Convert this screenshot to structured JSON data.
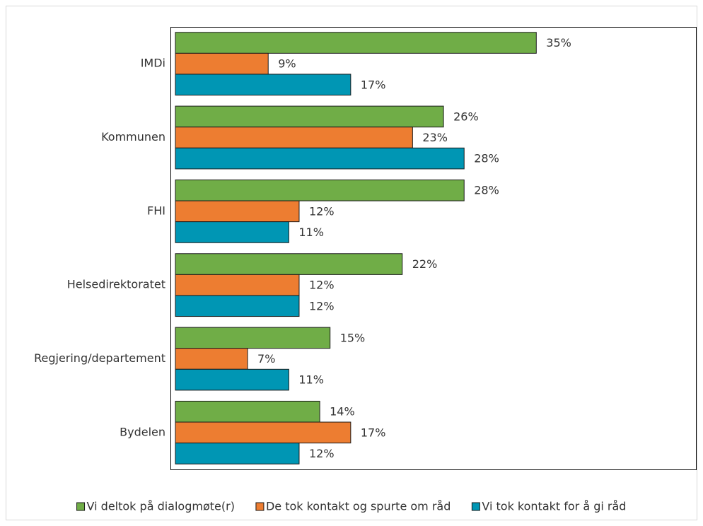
{
  "chart_data": {
    "type": "bar",
    "orientation": "horizontal",
    "categories": [
      "IMDi",
      "Kommunen",
      "FHI",
      "Helsedirektoratet",
      "Regjering/departement",
      "Bydelen"
    ],
    "series": [
      {
        "name": "Vi deltok på dialogmøte(r)",
        "color": "#70ad47",
        "values": [
          35,
          26,
          28,
          22,
          15,
          14
        ],
        "value_labels": [
          "35%",
          "26%",
          "28%",
          "22%",
          "15%",
          "14%"
        ]
      },
      {
        "name": "De tok kontakt og spurte om råd",
        "color": "#ed7d31",
        "values": [
          9,
          23,
          12,
          12,
          7,
          17
        ],
        "value_labels": [
          "9%",
          "23%",
          "12%",
          "12%",
          "7%",
          "17%"
        ]
      },
      {
        "name": "Vi tok kontakt for å gi råd",
        "color": "#0096b4",
        "values": [
          17,
          28,
          11,
          12,
          11,
          12
        ],
        "value_labels": [
          "17%",
          "28%",
          "11%",
          "12%",
          "11%",
          "12%"
        ]
      }
    ],
    "xlim": [
      0,
      50
    ],
    "legend": "bottom"
  }
}
